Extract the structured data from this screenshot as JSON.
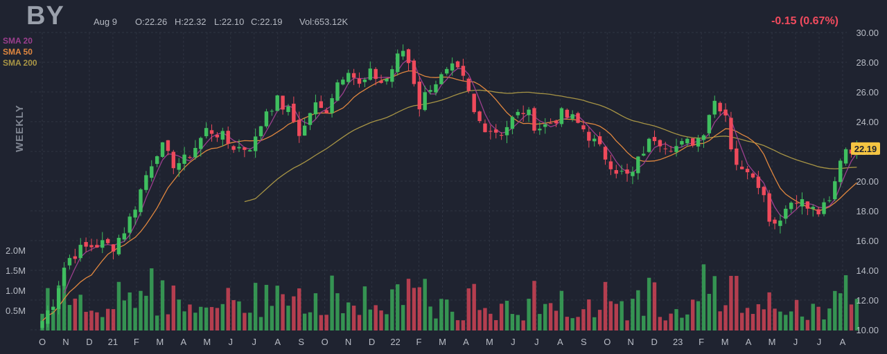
{
  "header": {
    "ticker": "BY",
    "date": "Aug 9",
    "open": "O:22.26",
    "high": "H:22.32",
    "low": "L:22.10",
    "close": "C:22.19",
    "volume": "Vol:653.12K",
    "change": "-0.15 (0.67%)",
    "timeframe": "WEEKLY"
  },
  "colors": {
    "background": "#1f2330",
    "up": "#3fbf5f",
    "down": "#ef4a5b",
    "sma20": "#9b3f8e",
    "sma50": "#e0873f",
    "sma200": "#a89545",
    "price_tag": "#f5c542"
  },
  "chart_data": {
    "type": "candlestick",
    "price_axis": {
      "min": 10,
      "max": 30,
      "ticks": [
        "30.00",
        "28.00",
        "26.00",
        "24.00",
        "22.00",
        "20.00",
        "18.00",
        "16.00",
        "14.00",
        "12.00",
        "10.00"
      ]
    },
    "volume_axis": {
      "ticks": [
        "2.0M",
        "1.5M",
        "1.0M",
        "0.5M"
      ],
      "values": [
        2.0,
        1.5,
        1.0,
        0.5
      ]
    },
    "x_labels": [
      "O",
      "N",
      "D",
      "21",
      "F",
      "M",
      "A",
      "M",
      "J",
      "J",
      "A",
      "S",
      "O",
      "N",
      "D",
      "22",
      "F",
      "M",
      "A",
      "M",
      "J",
      "J",
      "A",
      "S",
      "O",
      "N",
      "D",
      "23",
      "F",
      "M",
      "A",
      "M",
      "J",
      "J",
      "A"
    ],
    "last_price": "22.19",
    "legend": [
      {
        "name": "SMA 20",
        "color": "#9b3f8e"
      },
      {
        "name": "SMA 50",
        "color": "#e0873f"
      },
      {
        "name": "SMA 200",
        "color": "#a89545"
      }
    ],
    "anchor_closes": [
      {
        "m": 0,
        "c": 10.6
      },
      {
        "m": 0.5,
        "c": 12.0
      },
      {
        "m": 1,
        "c": 14.6
      },
      {
        "m": 1.5,
        "c": 15.3
      },
      {
        "m": 2,
        "c": 15.6
      },
      {
        "m": 2.5,
        "c": 15.8
      },
      {
        "m": 3,
        "c": 15.6
      },
      {
        "m": 3.6,
        "c": 17.0
      },
      {
        "m": 4,
        "c": 18.6
      },
      {
        "m": 4.5,
        "c": 20.8
      },
      {
        "m": 5,
        "c": 22.5
      },
      {
        "m": 5.5,
        "c": 21.2
      },
      {
        "m": 6,
        "c": 21.3
      },
      {
        "m": 6.5,
        "c": 22.3
      },
      {
        "m": 7,
        "c": 23.5
      },
      {
        "m": 7.5,
        "c": 23.2
      },
      {
        "m": 8,
        "c": 22.4
      },
      {
        "m": 8.5,
        "c": 22.2
      },
      {
        "m": 9,
        "c": 22.5
      },
      {
        "m": 9.5,
        "c": 24.8
      },
      {
        "m": 10,
        "c": 25.4
      },
      {
        "m": 10.5,
        "c": 24.6
      },
      {
        "m": 11,
        "c": 23.0
      },
      {
        "m": 11.5,
        "c": 25.2
      },
      {
        "m": 12,
        "c": 24.6
      },
      {
        "m": 12.5,
        "c": 26.6
      },
      {
        "m": 13,
        "c": 27.7
      },
      {
        "m": 13.5,
        "c": 26.3
      },
      {
        "m": 14,
        "c": 27.3
      },
      {
        "m": 14.5,
        "c": 26.5
      },
      {
        "m": 15,
        "c": 28.0
      },
      {
        "m": 15.3,
        "c": 28.9
      },
      {
        "m": 15.7,
        "c": 27.5
      },
      {
        "m": 16,
        "c": 25.0
      },
      {
        "m": 16.5,
        "c": 26.5
      },
      {
        "m": 17,
        "c": 27.0
      },
      {
        "m": 17.5,
        "c": 27.6
      },
      {
        "m": 18,
        "c": 26.5
      },
      {
        "m": 18.4,
        "c": 24.2
      },
      {
        "m": 19,
        "c": 23.5
      },
      {
        "m": 19.5,
        "c": 23.3
      },
      {
        "m": 20,
        "c": 24.2
      },
      {
        "m": 20.5,
        "c": 24.8
      },
      {
        "m": 21,
        "c": 23.6
      },
      {
        "m": 21.5,
        "c": 23.8
      },
      {
        "m": 22,
        "c": 24.5
      },
      {
        "m": 22.5,
        "c": 24.2
      },
      {
        "m": 23,
        "c": 23.5
      },
      {
        "m": 23.5,
        "c": 22.5
      },
      {
        "m": 24,
        "c": 21.5
      },
      {
        "m": 24.5,
        "c": 20.6
      },
      {
        "m": 25,
        "c": 20.2
      },
      {
        "m": 25.5,
        "c": 22.0
      },
      {
        "m": 26,
        "c": 23.0
      },
      {
        "m": 26.5,
        "c": 22.5
      },
      {
        "m": 27,
        "c": 22.3
      },
      {
        "m": 27.5,
        "c": 22.6
      },
      {
        "m": 28,
        "c": 23.0
      },
      {
        "m": 28.5,
        "c": 25.5
      },
      {
        "m": 29,
        "c": 24.8
      },
      {
        "m": 29.3,
        "c": 22.0
      },
      {
        "m": 29.7,
        "c": 20.5
      },
      {
        "m": 30,
        "c": 21.0
      },
      {
        "m": 30.5,
        "c": 19.8
      },
      {
        "m": 31,
        "c": 17.0
      },
      {
        "m": 31.5,
        "c": 18.0
      },
      {
        "m": 32,
        "c": 19.0
      },
      {
        "m": 32.5,
        "c": 18.2
      },
      {
        "m": 33,
        "c": 17.9
      },
      {
        "m": 33.5,
        "c": 18.6
      },
      {
        "m": 34,
        "c": 22.3
      },
      {
        "m": 34.6,
        "c": 22.19
      }
    ]
  }
}
